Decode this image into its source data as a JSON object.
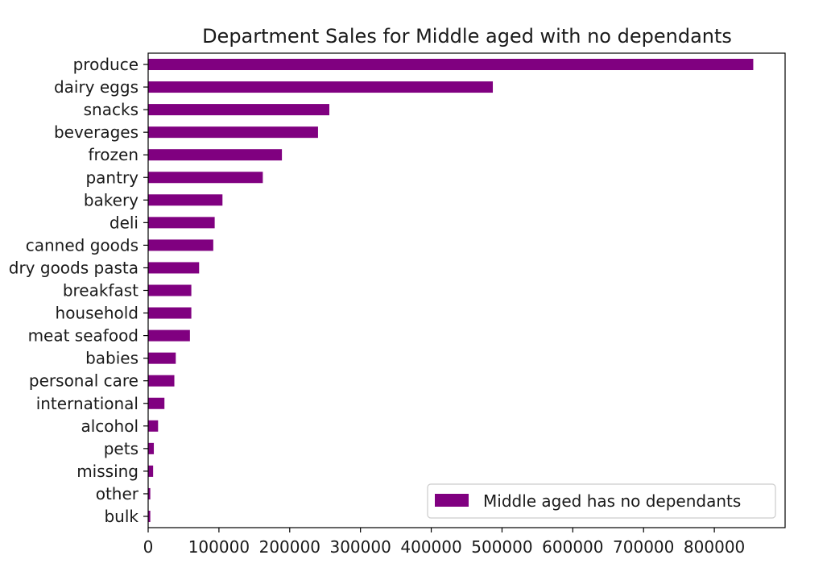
{
  "chart_data": {
    "type": "bar",
    "orientation": "horizontal",
    "title": "Department Sales for Middle aged with no dependants",
    "xlabel": "",
    "ylabel": "",
    "xlim": [
      0,
      900000
    ],
    "xticks": [
      0,
      100000,
      200000,
      300000,
      400000,
      500000,
      600000,
      700000,
      800000
    ],
    "xtick_labels": [
      "0",
      "100000",
      "200000",
      "300000",
      "400000",
      "500000",
      "600000",
      "700000",
      "800000"
    ],
    "grid": false,
    "legend_position": "lower-right",
    "bar_color": "#800080",
    "categories": [
      "produce",
      "dairy eggs",
      "snacks",
      "beverages",
      "frozen",
      "pantry",
      "bakery",
      "deli",
      "canned goods",
      "dry goods pasta",
      "breakfast",
      "household",
      "meat seafood",
      "babies",
      "personal care",
      "international",
      "alcohol",
      "pets",
      "missing",
      "other",
      "bulk"
    ],
    "series": [
      {
        "name": "Middle aged has no dependants",
        "values": [
          855000,
          487000,
          256000,
          240000,
          189000,
          162000,
          105000,
          94000,
          92000,
          72000,
          61000,
          61000,
          59000,
          39000,
          37000,
          23000,
          14000,
          8000,
          7000,
          3000,
          3000
        ]
      }
    ]
  }
}
